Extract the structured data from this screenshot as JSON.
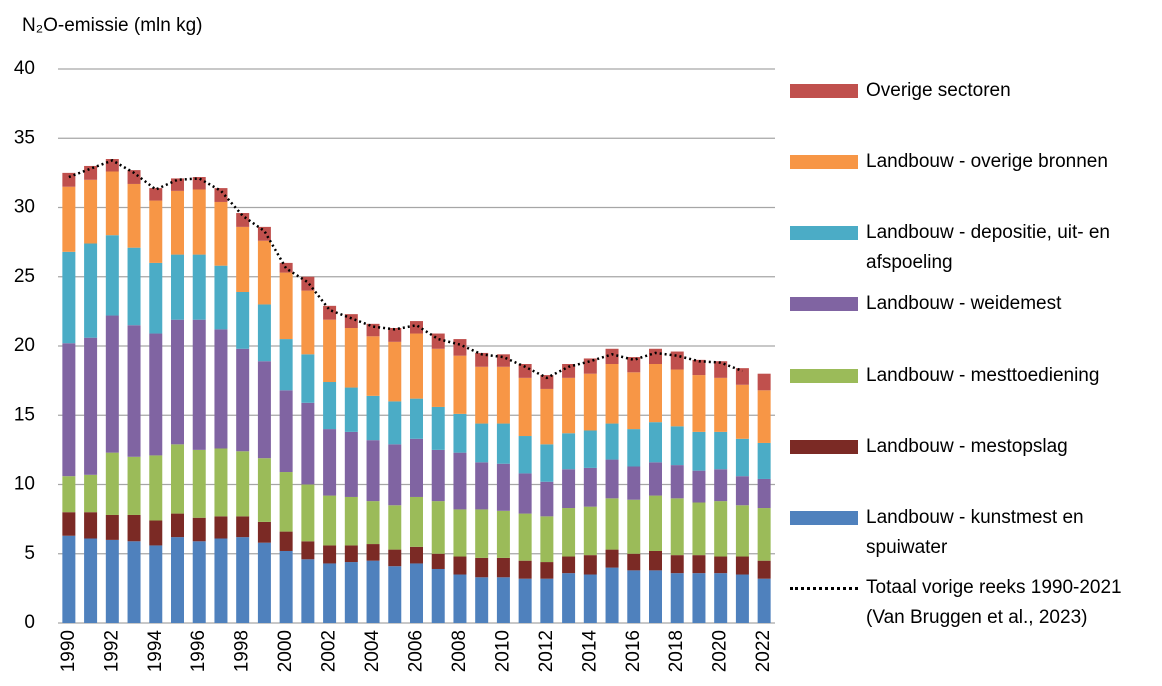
{
  "chart_data": {
    "type": "bar",
    "stacked": true,
    "y_label": "N₂O-emissie (mln kg)",
    "categories": [
      "1990",
      null,
      "1992",
      null,
      "1994",
      null,
      "1996",
      null,
      "1998",
      null,
      "2000",
      null,
      "2002",
      null,
      "2004",
      null,
      "2006",
      null,
      "2008",
      null,
      "2010",
      null,
      "2012",
      null,
      "2014",
      null,
      "2016",
      null,
      "2018",
      null,
      "2020",
      null,
      "2022"
    ],
    "ylim": [
      0,
      40
    ],
    "yticks": [
      0,
      5,
      10,
      15,
      20,
      25,
      30,
      35,
      40
    ],
    "grid": true,
    "legend": "right",
    "series": [
      {
        "name": "Landbouw - kunstmest en spuiwater",
        "color": "#4f81bd",
        "values": [
          6.3,
          6.1,
          6.0,
          5.9,
          5.6,
          6.2,
          5.9,
          6.1,
          6.2,
          5.8,
          5.2,
          4.6,
          4.3,
          4.4,
          4.5,
          4.1,
          4.3,
          3.9,
          3.5,
          3.3,
          3.3,
          3.2,
          3.2,
          3.6,
          3.5,
          4.0,
          3.8,
          3.8,
          3.6,
          3.6,
          3.6,
          3.5,
          3.2
        ]
      },
      {
        "name": "Landbouw - mestopslag",
        "color": "#7b2a25",
        "values": [
          1.7,
          1.9,
          1.8,
          1.9,
          1.8,
          1.7,
          1.7,
          1.6,
          1.5,
          1.5,
          1.4,
          1.3,
          1.3,
          1.2,
          1.2,
          1.2,
          1.2,
          1.1,
          1.3,
          1.4,
          1.4,
          1.3,
          1.2,
          1.2,
          1.4,
          1.3,
          1.2,
          1.4,
          1.3,
          1.3,
          1.2,
          1.3,
          1.3
        ]
      },
      {
        "name": "Landbouw - mesttoediening",
        "color": "#9bbb59",
        "values": [
          2.6,
          2.7,
          4.5,
          4.2,
          4.7,
          5.0,
          4.9,
          4.9,
          4.7,
          4.6,
          4.3,
          4.1,
          3.6,
          3.5,
          3.1,
          3.2,
          3.6,
          3.8,
          3.4,
          3.5,
          3.4,
          3.4,
          3.3,
          3.5,
          3.5,
          3.7,
          3.9,
          4.0,
          4.1,
          3.8,
          4.0,
          3.7,
          3.8
        ]
      },
      {
        "name": "Landbouw - weidemest",
        "color": "#8064a2",
        "values": [
          9.6,
          9.9,
          9.9,
          9.5,
          8.8,
          9.0,
          9.4,
          8.6,
          7.4,
          7.0,
          5.9,
          5.9,
          4.8,
          4.7,
          4.4,
          4.4,
          4.2,
          3.7,
          4.1,
          3.4,
          3.4,
          2.9,
          2.5,
          2.8,
          2.8,
          2.8,
          2.4,
          2.4,
          2.4,
          2.3,
          2.3,
          2.1,
          2.1
        ]
      },
      {
        "name": "Landbouw - depositie, uit- en afspoeling",
        "color": "#4bacc6",
        "values": [
          6.6,
          6.8,
          5.8,
          5.6,
          5.1,
          4.7,
          4.7,
          4.6,
          4.1,
          4.1,
          3.7,
          3.5,
          3.4,
          3.2,
          3.2,
          3.1,
          2.9,
          3.1,
          2.8,
          2.8,
          2.9,
          2.7,
          2.7,
          2.6,
          2.7,
          2.6,
          2.7,
          2.9,
          2.8,
          2.8,
          2.7,
          2.7,
          2.6
        ]
      },
      {
        "name": "Landbouw - overige bronnen",
        "color": "#f79646",
        "values": [
          4.7,
          4.6,
          4.6,
          4.6,
          4.5,
          4.6,
          4.7,
          4.6,
          4.7,
          4.6,
          4.8,
          4.6,
          4.5,
          4.3,
          4.3,
          4.3,
          4.7,
          4.2,
          4.2,
          4.1,
          4.1,
          4.2,
          4.0,
          4.0,
          4.1,
          4.3,
          4.1,
          4.2,
          4.1,
          4.1,
          3.9,
          3.9,
          3.8
        ]
      },
      {
        "name": "Overige sectoren",
        "color": "#c0504d",
        "values": [
          1.0,
          1.0,
          0.9,
          1.0,
          0.9,
          0.9,
          0.9,
          1.0,
          1.0,
          1.0,
          0.7,
          1.0,
          1.0,
          1.0,
          0.9,
          1.0,
          0.9,
          1.1,
          1.2,
          1.0,
          0.9,
          1.0,
          1.0,
          1.0,
          1.1,
          1.1,
          1.1,
          1.1,
          1.3,
          1.1,
          1.2,
          1.2,
          1.2
        ]
      }
    ],
    "total_line": {
      "name": "Totaal vorige reeks 1990-2021 (Van Bruggen et al., 2023)",
      "color": "#000000",
      "values": [
        32.2,
        32.8,
        33.4,
        32.5,
        31.3,
        32.0,
        32.1,
        31.2,
        29.4,
        28.3,
        25.6,
        24.6,
        22.6,
        22.0,
        21.4,
        21.2,
        21.5,
        20.5,
        20.1,
        19.4,
        19.2,
        18.5,
        17.7,
        18.5,
        18.9,
        19.4,
        19.0,
        19.5,
        19.3,
        18.9,
        18.8,
        18.2,
        null
      ]
    }
  }
}
